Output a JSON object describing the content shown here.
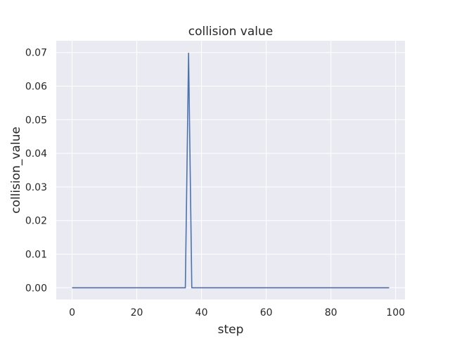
{
  "chart_data": {
    "type": "line",
    "title": "collision value",
    "xlabel": "step",
    "ylabel": "collision_value",
    "xlim": [
      -4.9,
      102.9
    ],
    "ylim": [
      -0.0035,
      0.0735
    ],
    "xticks": [
      0,
      20,
      40,
      60,
      80,
      100
    ],
    "xtick_labels": [
      "0",
      "20",
      "40",
      "60",
      "80",
      "100"
    ],
    "yticks": [
      0,
      0.01,
      0.02,
      0.03,
      0.04,
      0.05,
      0.06,
      0.07
    ],
    "ytick_labels": [
      "0.00",
      "0.01",
      "0.02",
      "0.03",
      "0.04",
      "0.05",
      "0.06",
      "0.07"
    ],
    "grid": true,
    "style": "seaborn-darkgrid",
    "colors": {
      "background": "#eaeaf2",
      "grid": "#ffffff",
      "line": "#4c72b0"
    },
    "series": [
      {
        "x": [
          0,
          35,
          36,
          37,
          98
        ],
        "y": [
          0,
          0,
          0.0698,
          0,
          0
        ]
      }
    ]
  }
}
